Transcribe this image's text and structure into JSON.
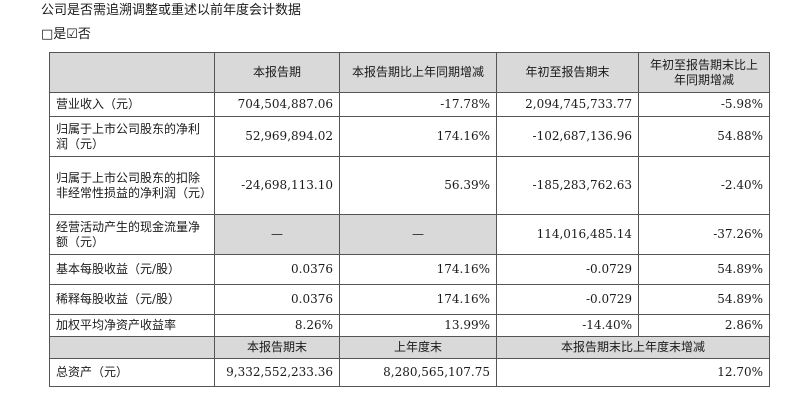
{
  "heading": "公司是否需追溯调整或重述以前年度会计数据",
  "choice": "□是☑否",
  "table": {
    "headers": [
      "",
      "本报告期",
      "本报告期比上年同期增减",
      "年初至报告期末",
      "年初至报告期末比上年同期增减"
    ],
    "rows": [
      {
        "label": "营业收入（元）",
        "cells": [
          "704,504,887.06",
          "-17.78%",
          "2,094,745,733.77",
          "-5.98%"
        ]
      },
      {
        "label": "归属于上市公司股东的净利润（元）",
        "cells": [
          "52,969,894.02",
          "174.16%",
          "-102,687,136.96",
          "54.88%"
        ]
      },
      {
        "label": "归属于上市公司股东的扣除非经常性损益的净利润（元）",
        "cells": [
          "-24,698,113.10",
          "56.39%",
          "-185,283,762.63",
          "-2.40%"
        ]
      },
      {
        "label": "经营活动产生的现金流量净额（元）",
        "cells": [
          "—",
          "—",
          "114,016,485.14",
          "-37.26%"
        ]
      },
      {
        "label": "基本每股收益（元/股）",
        "cells": [
          "0.0376",
          "174.16%",
          "-0.0729",
          "54.89%"
        ]
      },
      {
        "label": "稀释每股收益（元/股）",
        "cells": [
          "0.0376",
          "174.16%",
          "-0.0729",
          "54.89%"
        ]
      },
      {
        "label": "加权平均净资产收益率",
        "cells": [
          "8.26%",
          "13.99%",
          "-14.40%",
          "2.86%"
        ]
      }
    ],
    "headers2": [
      "",
      "本报告期末",
      "上年度末",
      "本报告期末比上年度末增减"
    ],
    "rows2": [
      {
        "label": "总资产（元）",
        "cells": [
          "9,332,552,233.36",
          "8,280,565,107.75",
          "12.70%"
        ]
      }
    ]
  }
}
